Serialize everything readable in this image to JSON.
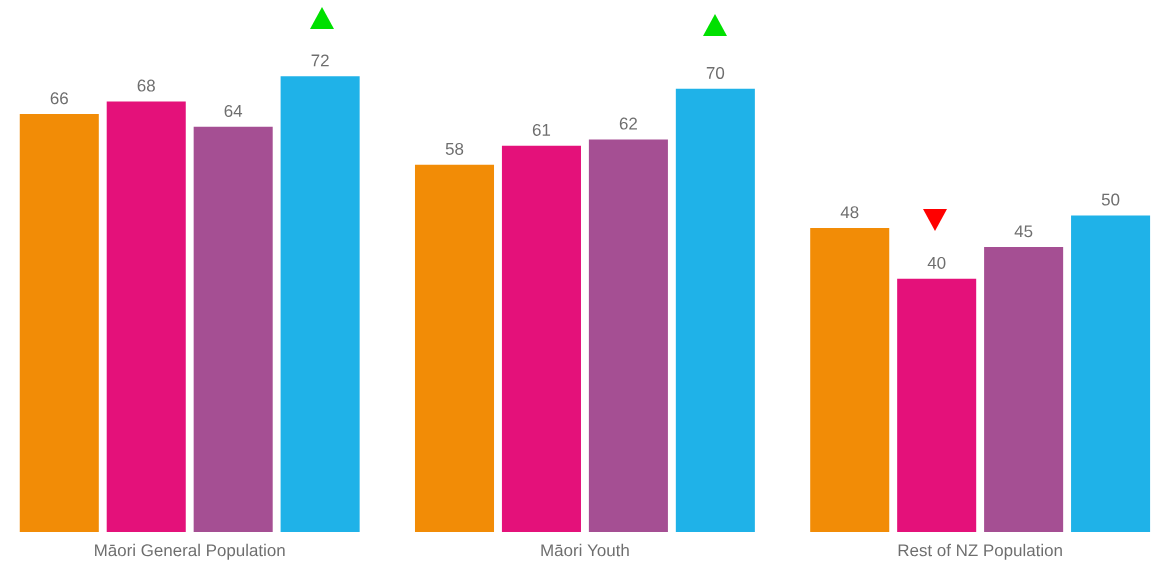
{
  "chart_data": {
    "type": "bar",
    "categories": [
      "Māori General Population",
      "Māori Youth",
      "Rest of NZ Population"
    ],
    "series": [
      {
        "color": "#f28c06",
        "values": [
          66,
          58,
          48
        ]
      },
      {
        "color": "#e4117a",
        "values": [
          68,
          61,
          40
        ]
      },
      {
        "color": "#a54f93",
        "values": [
          64,
          62,
          45
        ]
      },
      {
        "color": "#1fb2e8",
        "values": [
          72,
          70,
          50
        ]
      }
    ],
    "data_labels": true,
    "tick_labels": "x"
  }
}
